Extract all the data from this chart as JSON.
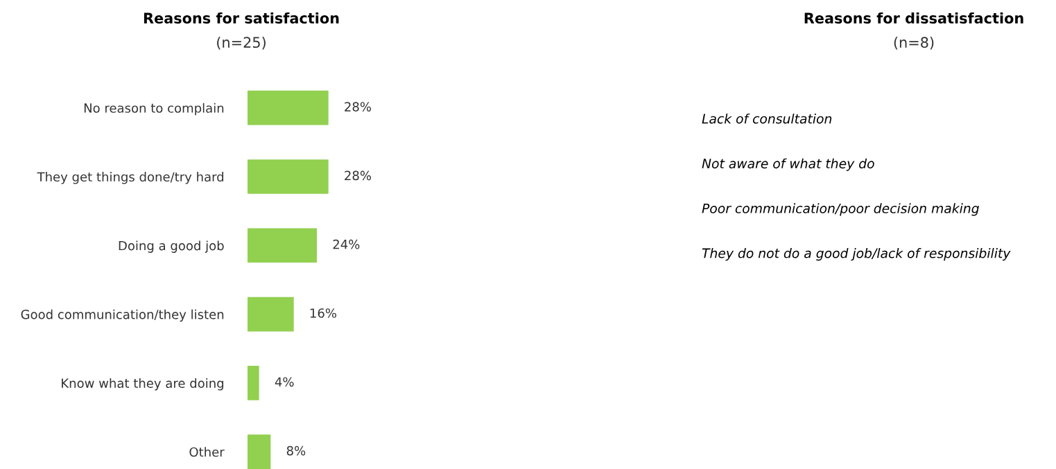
{
  "chart_data": [
    {
      "type": "bar",
      "orientation": "horizontal",
      "title": "Reasons for satisfaction",
      "subtitle": "(n=25)",
      "categories": [
        "No reason to complain",
        "They get things done/try hard",
        "Doing a good job",
        "Good communication/they listen",
        "Know what they are doing",
        "Other"
      ],
      "values": [
        28,
        28,
        24,
        16,
        4,
        8
      ],
      "value_labels": [
        "28%",
        "28%",
        "24%",
        "16%",
        "4%",
        "8%"
      ],
      "color": "#92d050"
    },
    {
      "type": "other",
      "title": "Reasons for dissatisfaction",
      "subtitle": "(n=8)",
      "annotations": [
        "Lack of consultation",
        "Not aware of what they do",
        "Poor communication/poor decision making",
        "They do not do a good job/lack of responsibility"
      ]
    }
  ]
}
